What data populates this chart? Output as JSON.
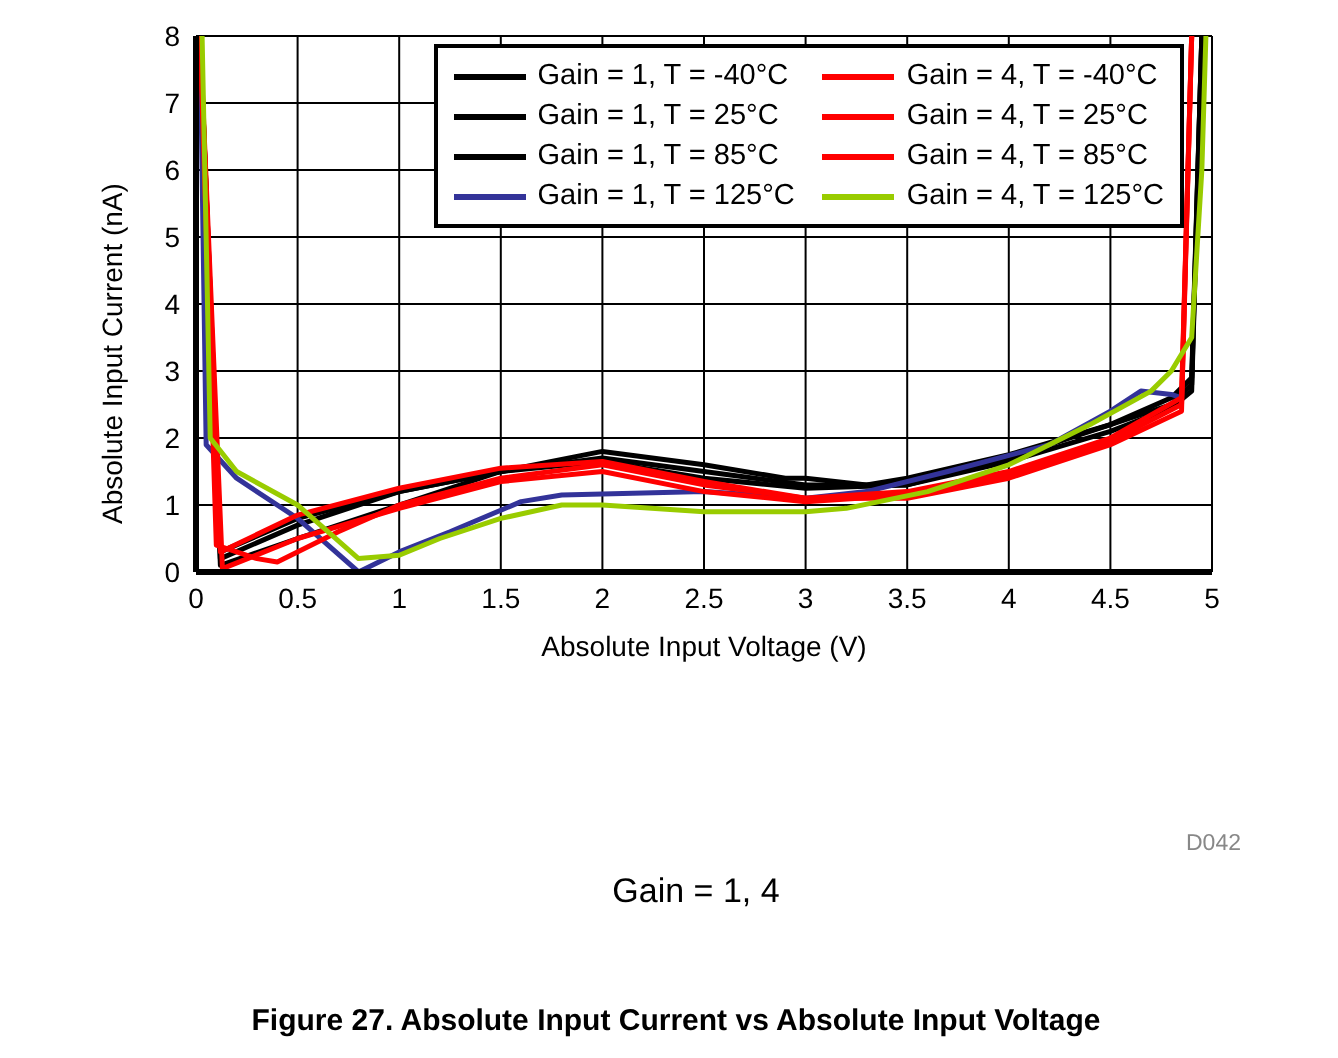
{
  "chart_data": {
    "type": "line",
    "title": "Figure 27. Absolute Input Current vs Absolute Input Voltage",
    "xlabel": "Absolute Input Voltage (V)",
    "ylabel": "Absolute Input Current (nA)",
    "annotations": [
      "Gain = 1, 4",
      "D042"
    ],
    "xlim": [
      0,
      5
    ],
    "xticks": [
      0,
      0.5,
      1,
      1.5,
      2,
      2.5,
      3,
      3.5,
      4,
      4.5,
      5
    ],
    "ylim": [
      0,
      8
    ],
    "yticks": [
      0,
      1,
      2,
      3,
      4,
      5,
      6,
      7,
      8
    ],
    "grid": true,
    "legend": "top right",
    "marker": "none",
    "line_style": "solid",
    "series": [
      {
        "name": "Gain = 1, T = -40°C",
        "color": "#000000",
        "x": [
          0.02,
          0.12,
          0.5,
          1,
          1.5,
          2,
          2.5,
          2.9,
          3,
          3.3,
          3.5,
          4,
          4.5,
          4.8,
          4.9,
          4.95
        ],
        "values": [
          8,
          0.1,
          0.5,
          1.0,
          1.5,
          1.8,
          1.6,
          1.4,
          1.4,
          1.3,
          1.4,
          1.75,
          2.2,
          2.6,
          2.9,
          8
        ]
      },
      {
        "name": "Gain = 1, T = 25°C",
        "color": "#000000",
        "x": [
          0.02,
          0.12,
          0.5,
          1,
          1.5,
          2,
          2.5,
          3,
          3.5,
          4,
          4.5,
          4.8,
          4.9,
          4.95
        ],
        "values": [
          8,
          0.2,
          0.7,
          1.2,
          1.5,
          1.7,
          1.5,
          1.3,
          1.3,
          1.7,
          2.2,
          2.5,
          2.8,
          8
        ]
      },
      {
        "name": "Gain = 1, T = 85°C",
        "color": "#000000",
        "x": [
          0.02,
          0.12,
          0.5,
          1,
          1.5,
          2,
          2.5,
          3,
          3.5,
          4,
          4.5,
          4.8,
          4.9,
          4.95
        ],
        "values": [
          8,
          0.3,
          0.8,
          1.2,
          1.5,
          1.65,
          1.4,
          1.25,
          1.3,
          1.65,
          2.1,
          2.45,
          2.7,
          8
        ]
      },
      {
        "name": "Gain = 1, T = 125°C",
        "color": "#333399",
        "x": [
          0.02,
          0.05,
          0.2,
          0.5,
          0.8,
          1,
          1.25,
          1.6,
          1.8,
          2.5,
          3,
          3.3,
          3.7,
          4.2,
          4.5,
          4.65,
          4.8,
          4.85
        ],
        "values": [
          8,
          1.9,
          1.4,
          0.8,
          0,
          0.3,
          0.6,
          1.05,
          1.15,
          1.2,
          1.1,
          1.2,
          1.5,
          1.9,
          2.4,
          2.7,
          2.65,
          2.6
        ]
      },
      {
        "name": "Gain = 4, T = -40°C",
        "color": "#ff0000",
        "x": [
          0.02,
          0.1,
          0.3,
          0.4,
          0.7,
          1,
          1.5,
          2,
          2.5,
          3,
          3.5,
          4,
          4.5,
          4.85,
          4.9
        ],
        "values": [
          8,
          0.4,
          0.2,
          0.15,
          0.6,
          1.0,
          1.4,
          1.6,
          1.3,
          1.1,
          1.1,
          1.4,
          1.9,
          2.4,
          8
        ]
      },
      {
        "name": "Gain = 4, T = 25°C",
        "color": "#ff0000",
        "x": [
          0.02,
          0.13,
          0.5,
          1,
          1.5,
          2,
          2.5,
          3,
          3.5,
          4,
          4.5,
          4.85,
          4.9
        ],
        "values": [
          8,
          0.05,
          0.5,
          0.95,
          1.35,
          1.5,
          1.2,
          1.05,
          1.15,
          1.45,
          1.95,
          2.5,
          8
        ]
      },
      {
        "name": "Gain = 4, T = 85°C",
        "color": "#ff0000",
        "x": [
          0.02,
          0.12,
          0.5,
          1,
          1.5,
          2,
          2.5,
          3,
          3.5,
          4,
          4.5,
          4.85,
          4.9
        ],
        "values": [
          8,
          0.3,
          0.85,
          1.25,
          1.55,
          1.65,
          1.35,
          1.1,
          1.2,
          1.5,
          2.0,
          2.6,
          8
        ]
      },
      {
        "name": "Gain = 4, T = 125°C",
        "color": "#99cc00",
        "x": [
          0.03,
          0.07,
          0.2,
          0.5,
          0.8,
          1,
          1.2,
          1.5,
          1.8,
          2,
          2.5,
          3,
          3.2,
          3.6,
          4,
          4.4,
          4.7,
          4.8,
          4.9,
          4.95,
          4.97
        ],
        "values": [
          8,
          2.0,
          1.5,
          1.0,
          0.2,
          0.25,
          0.5,
          0.8,
          1.0,
          1.0,
          0.9,
          0.9,
          0.95,
          1.2,
          1.6,
          2.2,
          2.7,
          3.0,
          3.5,
          6.0,
          8
        ]
      }
    ]
  }
}
